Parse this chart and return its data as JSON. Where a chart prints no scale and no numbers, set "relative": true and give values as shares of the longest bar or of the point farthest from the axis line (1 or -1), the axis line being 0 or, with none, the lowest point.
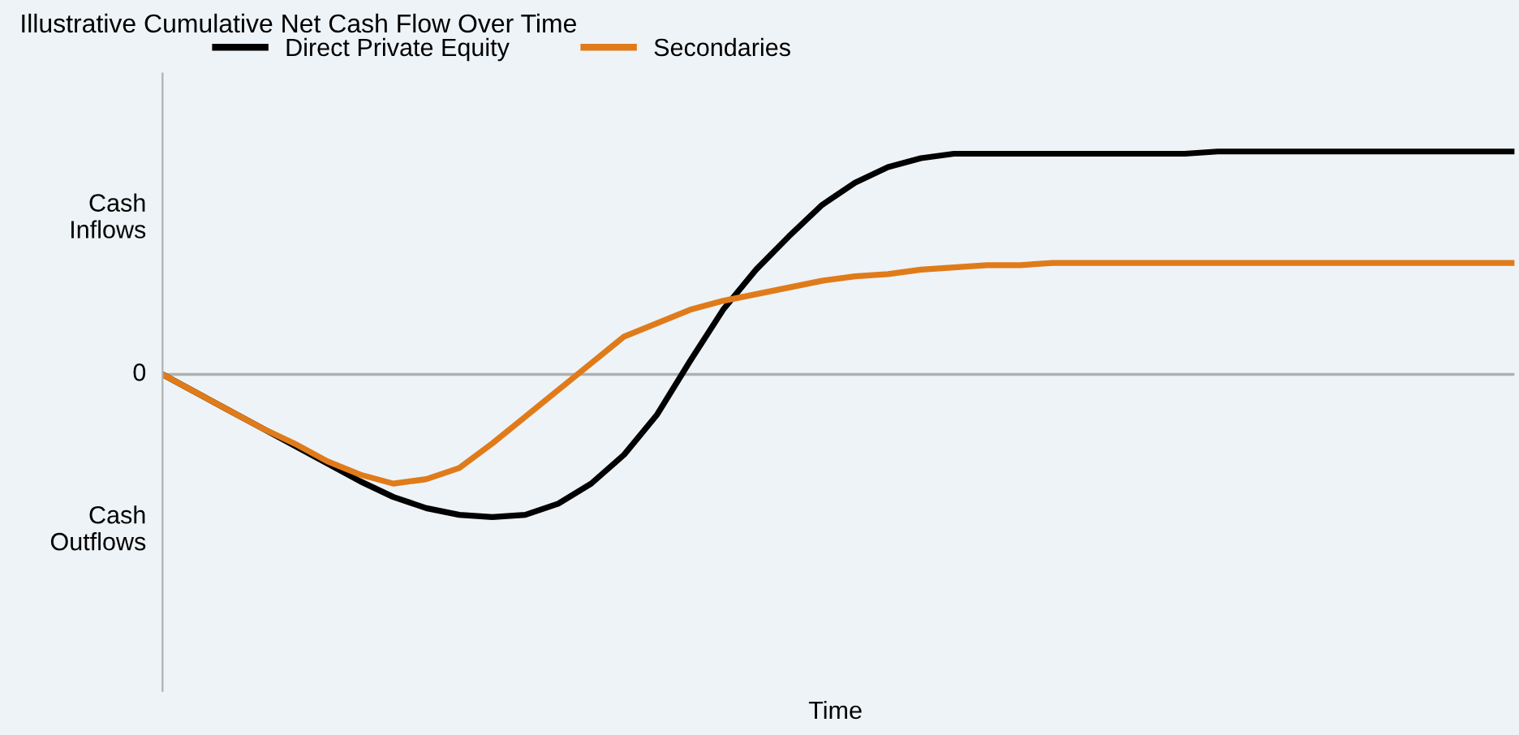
{
  "chart_data": {
    "type": "line",
    "title": "Illustrative Cumulative Net Cash Flow Over Time",
    "relative": true,
    "legend": "top",
    "grid": false,
    "marker": "none",
    "line_style": "solid",
    "categories": [
      null,
      null,
      null,
      null,
      null,
      null,
      null,
      null,
      null,
      null,
      null,
      null,
      null,
      null,
      null,
      null,
      null,
      null,
      null,
      null,
      null,
      null,
      null,
      null,
      null,
      null,
      null,
      null,
      null,
      null,
      null,
      null,
      null,
      null,
      null,
      null,
      null,
      null,
      null,
      null,
      null,
      null
    ],
    "series": [
      {
        "name": "Direct Private Equity",
        "color": "#000000",
        "values": [
          0,
          -0.08,
          -0.16,
          -0.24,
          -0.32,
          -0.4,
          -0.48,
          -0.55,
          -0.6,
          -0.63,
          -0.64,
          -0.63,
          -0.58,
          -0.49,
          -0.36,
          -0.18,
          0.06,
          0.29,
          0.47,
          0.62,
          0.76,
          0.86,
          0.93,
          0.97,
          0.99,
          0.99,
          0.99,
          0.99,
          0.99,
          0.99,
          0.99,
          0.99,
          1,
          1,
          1,
          1,
          1,
          1,
          1,
          1,
          1,
          1
        ]
      },
      {
        "name": "Secondaries",
        "color": "#e07b1a",
        "values": [
          0,
          -0.08,
          -0.16,
          -0.24,
          -0.31,
          -0.39,
          -0.45,
          -0.49,
          -0.47,
          -0.42,
          -0.31,
          -0.19,
          -0.07,
          0.05,
          0.17,
          0.23,
          0.29,
          0.33,
          0.36,
          0.39,
          0.42,
          0.44,
          0.45,
          0.47,
          0.48,
          0.49,
          0.49,
          0.5,
          0.5,
          0.5,
          0.5,
          0.5,
          0.5,
          0.5,
          0.5,
          0.5,
          0.5,
          0.5,
          0.5,
          0.5,
          0.5,
          0.5
        ]
      }
    ],
    "ref_lines": [
      {
        "axis": "y",
        "value": 0,
        "label": "0",
        "color": "#b0b0b0"
      }
    ],
    "annotations": [
      "Cash\nInflows",
      "Cash\nOutflows",
      "Time"
    ]
  }
}
